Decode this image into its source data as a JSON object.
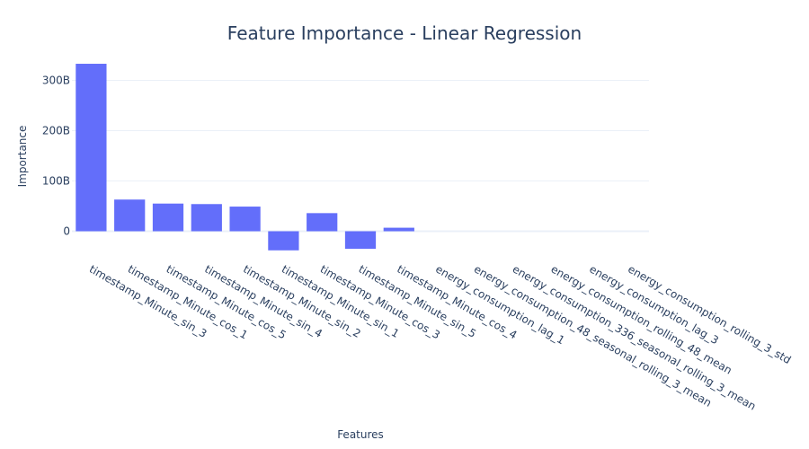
{
  "chart_data": {
    "type": "bar",
    "title": "Feature Importance - Linear Regression",
    "xlabel": "Features",
    "ylabel": "Importance",
    "categories": [
      "timestamp_Minute_sin_3",
      "timestamp_Minute_cos_1",
      "timestamp_Minute_cos_5",
      "timestamp_Minute_sin_4",
      "timestamp_Minute_sin_2",
      "timestamp_Minute_sin_1",
      "timestamp_Minute_cos_3",
      "timestamp_Minute_sin_5",
      "timestamp_Minute_cos_4",
      "energy_consumption_lag_1",
      "energy_consumption_48_seasonal_rolling_3_mean",
      "energy_consumption_336_seasonal_rolling_3_mean",
      "energy_consumption_rolling_48_mean",
      "energy_consumption_lag_3",
      "energy_consumption_rolling_3_std"
    ],
    "values": [
      333000000000,
      63000000000,
      55000000000,
      54000000000,
      49000000000,
      -38000000000,
      36000000000,
      -35000000000,
      7000000000,
      0,
      0,
      0,
      0,
      0,
      0
    ],
    "ylim": [
      -40000000000,
      340000000000
    ],
    "yticks": [
      0,
      100000000000,
      200000000000,
      300000000000
    ],
    "ytick_labels": [
      "0",
      "100B",
      "200B",
      "300B"
    ],
    "grid": true,
    "colors": {
      "bar": "#636efa",
      "text": "#2a3f5f",
      "grid": "#ebf0f8"
    }
  }
}
